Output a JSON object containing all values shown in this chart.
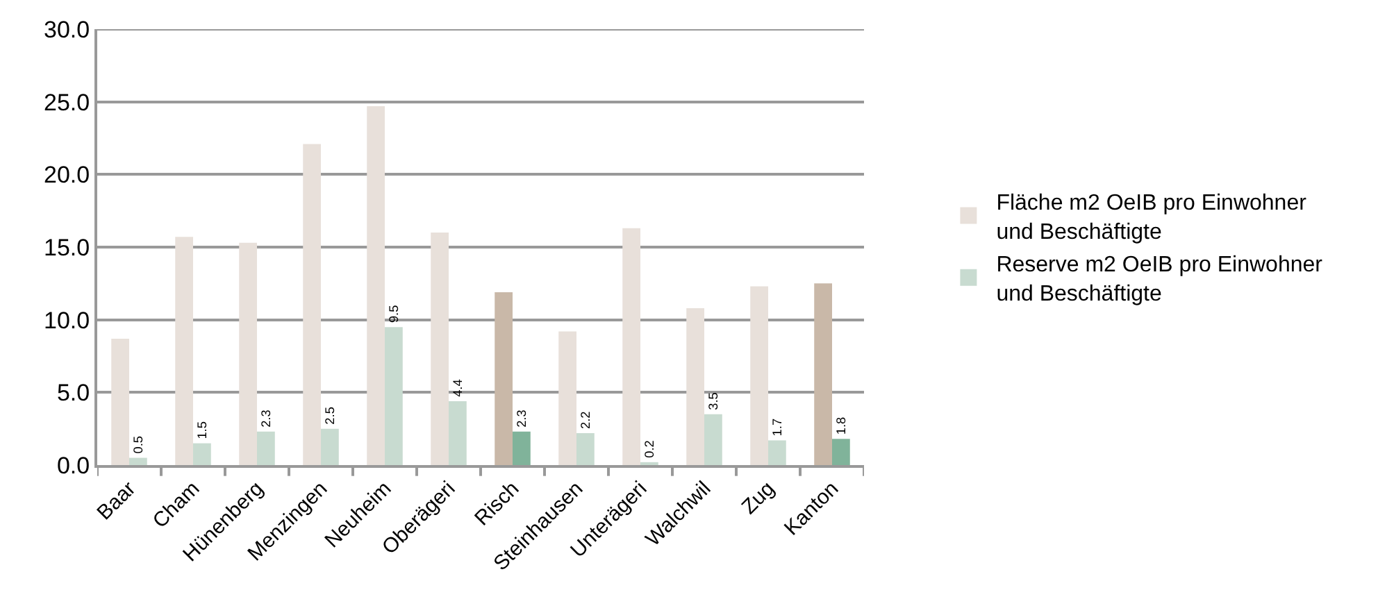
{
  "chart_data": {
    "type": "bar",
    "categories": [
      "Baar",
      "Cham",
      "Hünenberg",
      "Menzingen",
      "Neuheim",
      "Oberägeri",
      "Risch",
      "Steinhausen",
      "Unterägeri",
      "Walchwil",
      "Zug",
      "Kanton"
    ],
    "series": [
      {
        "name": "Fläche m2 OeIB pro Einwohner und Beschäftigte",
        "colors": [
          "#e8e0da",
          "#e8e0da",
          "#e8e0da",
          "#e8e0da",
          "#e8e0da",
          "#e8e0da",
          "#c9b8a8",
          "#e8e0da",
          "#e8e0da",
          "#e8e0da",
          "#e8e0da",
          "#c9b8a8"
        ],
        "values": [
          8.7,
          15.7,
          15.3,
          22.1,
          24.7,
          16.0,
          11.9,
          9.2,
          16.3,
          10.8,
          12.3,
          12.5
        ]
      },
      {
        "name": "Reserve m2 OeIB pro Einwohner und Beschäftigte",
        "colors": [
          "#c8dbd0",
          "#c8dbd0",
          "#c8dbd0",
          "#c8dbd0",
          "#c8dbd0",
          "#c8dbd0",
          "#80b39a",
          "#c8dbd0",
          "#c8dbd0",
          "#c8dbd0",
          "#c8dbd0",
          "#80b39a"
        ],
        "values": [
          0.5,
          1.5,
          2.3,
          2.5,
          9.5,
          4.4,
          2.3,
          2.2,
          0.2,
          3.5,
          1.7,
          1.8
        ],
        "value_labels": [
          "0.5",
          "1.5",
          "2.3",
          "2.5",
          "9.5",
          "4.4",
          "2.3",
          "2.2",
          "0.2",
          "3.5",
          "1.7",
          "1.8"
        ]
      }
    ],
    "ylim": [
      0,
      30
    ],
    "yticks": [
      "0.0",
      "5.0",
      "10.0",
      "15.0",
      "20.0",
      "25.0",
      "30.0"
    ],
    "grid": "y",
    "legend": "right"
  }
}
